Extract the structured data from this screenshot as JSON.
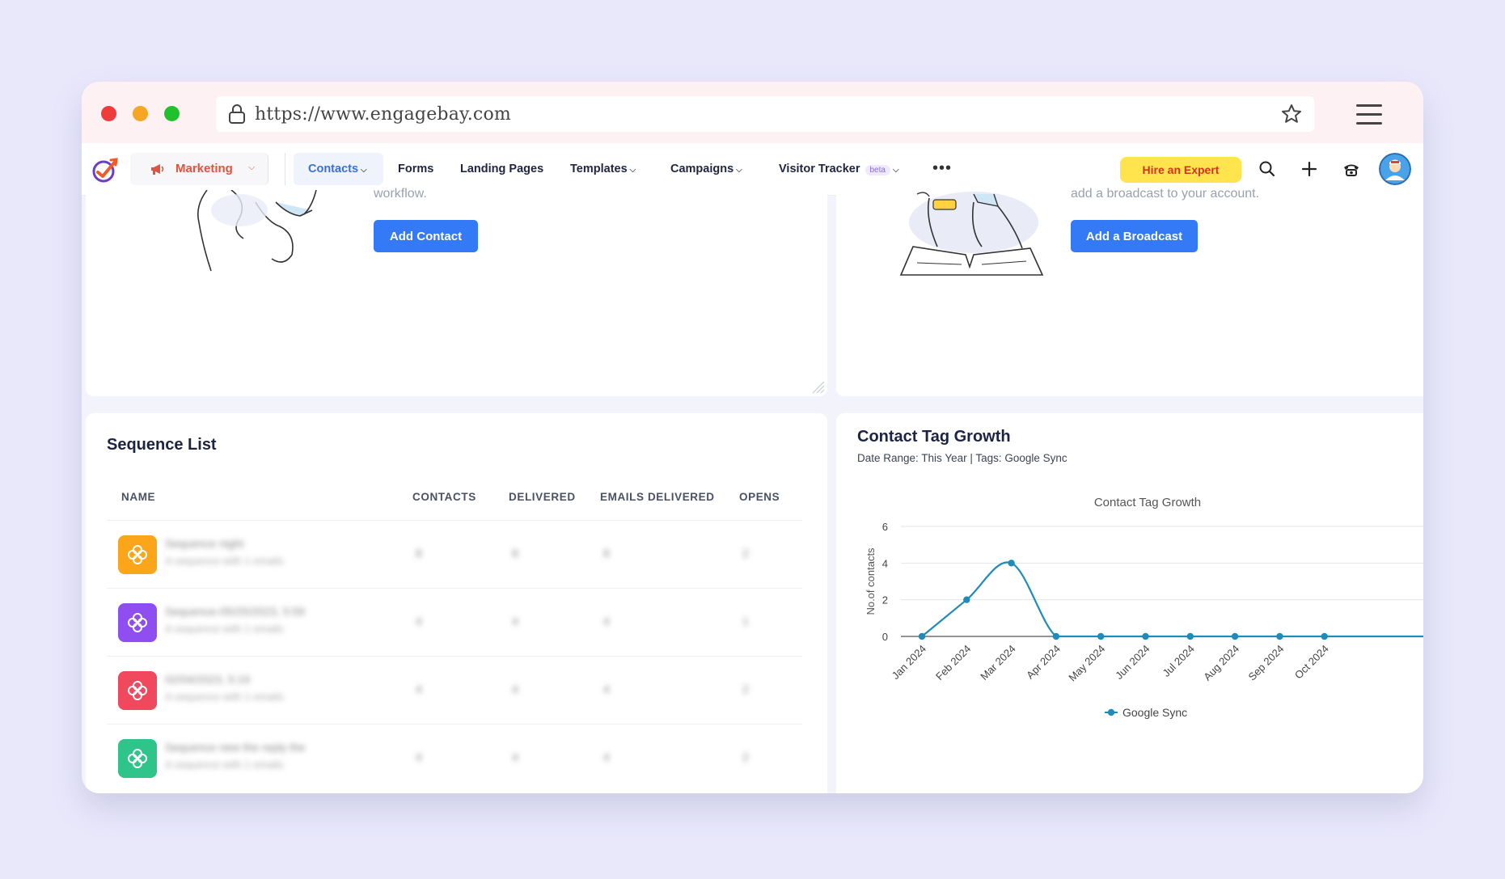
{
  "browser": {
    "url": "https://www.engagebay.com"
  },
  "nav": {
    "module": "Marketing",
    "items": [
      {
        "label": "Contacts",
        "dropdown": true,
        "active": true
      },
      {
        "label": "Forms",
        "dropdown": false
      },
      {
        "label": "Landing Pages",
        "dropdown": false
      },
      {
        "label": "Templates",
        "dropdown": true
      },
      {
        "label": "Campaigns",
        "dropdown": true
      },
      {
        "label": "Visitor Tracker",
        "dropdown": true,
        "badge": "beta"
      }
    ],
    "more": "•••",
    "hire_expert": "Hire an Expert",
    "icons": [
      "search-icon",
      "plus-icon",
      "phone-icon",
      "avatar"
    ]
  },
  "cards": {
    "contact_card": {
      "partial_text": "workflow.",
      "button": "Add Contact"
    },
    "broadcast_card": {
      "partial_text": "add a broadcast to your account.",
      "button": "Add a Broadcast"
    }
  },
  "sequence_list": {
    "title": "Sequence List",
    "columns": [
      "NAME",
      "CONTACTS",
      "DELIVERED",
      "EMAILS DELIVERED",
      "OPENS"
    ],
    "rows": [
      {
        "name": "Sequence night",
        "sub": "A sequence with 1 emails",
        "contacts": "8",
        "delivered": "8",
        "emails_delivered": "8",
        "opens": "2",
        "color": "#fba61a"
      },
      {
        "name": "Sequence-05/25/2023, 5:59",
        "sub": "A sequence with 1 emails",
        "contacts": "4",
        "delivered": "4",
        "emails_delivered": "4",
        "opens": "1",
        "color": "#8f4ff0"
      },
      {
        "name": "02/04/2023, 5:19",
        "sub": "A sequence with 1 emails",
        "contacts": "4",
        "delivered": "4",
        "emails_delivered": "4",
        "opens": "2",
        "color": "#f0485c"
      },
      {
        "name": "Sequence new the reply the",
        "sub": "A sequence with 1 emails",
        "contacts": "4",
        "delivered": "4",
        "emails_delivered": "4",
        "opens": "2",
        "color": "#2fc48a"
      }
    ]
  },
  "tag_growth": {
    "title": "Contact Tag Growth",
    "subtitle": "Date Range: This Year | Tags: Google Sync"
  },
  "chart_data": {
    "type": "line",
    "title": "Contact Tag Growth",
    "ylabel": "No.of contacts",
    "xlabel": "",
    "categories": [
      "Jan 2024",
      "Feb 2024",
      "Mar 2024",
      "Apr 2024",
      "May 2024",
      "Jun 2024",
      "Jul 2024",
      "Aug 2024",
      "Sep 2024",
      "Oct 2024"
    ],
    "yticks": [
      "0",
      "2",
      "4",
      "6"
    ],
    "ylim": [
      0,
      6
    ],
    "series": [
      {
        "name": "Google Sync",
        "values": [
          0,
          2,
          4,
          0,
          0,
          0,
          0,
          0,
          0,
          0
        ],
        "color": "#1f8bb6"
      }
    ],
    "legend": "bottom",
    "grid": true
  }
}
